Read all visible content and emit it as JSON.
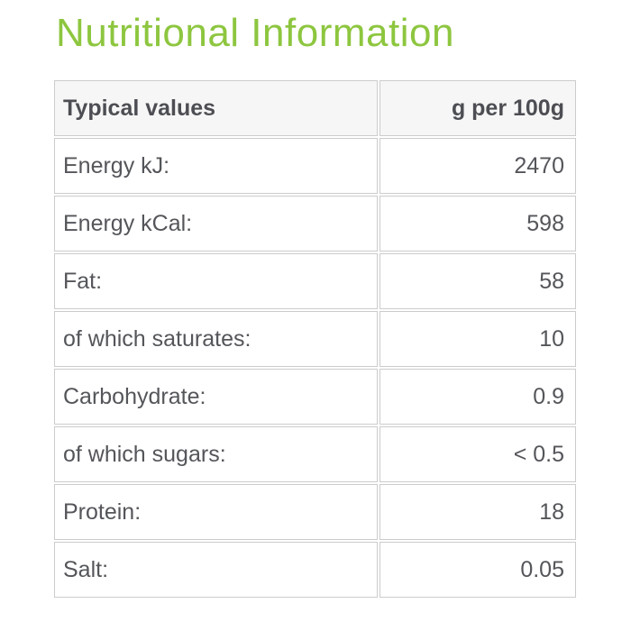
{
  "page": {
    "title": "Nutritional Information"
  },
  "colors": {
    "title_green": "#8dc63f",
    "text": "#54565a",
    "header_text": "#4d4e53",
    "border": "#cccccc",
    "header_bg": "#f6f6f6",
    "page_bg": "#ffffff"
  },
  "table": {
    "headers": [
      "Typical values",
      "g per 100g"
    ],
    "rows": [
      {
        "label": "Energy kJ:",
        "value": "2470"
      },
      {
        "label": "Energy kCal:",
        "value": "598"
      },
      {
        "label": "Fat:",
        "value": "58"
      },
      {
        "label": "of which saturates:",
        "value": "10"
      },
      {
        "label": "Carbohydrate:",
        "value": "0.9"
      },
      {
        "label": "of which sugars:",
        "value": "< 0.5"
      },
      {
        "label": "Protein:",
        "value": "18"
      },
      {
        "label": "Salt:",
        "value": "0.05"
      }
    ]
  }
}
